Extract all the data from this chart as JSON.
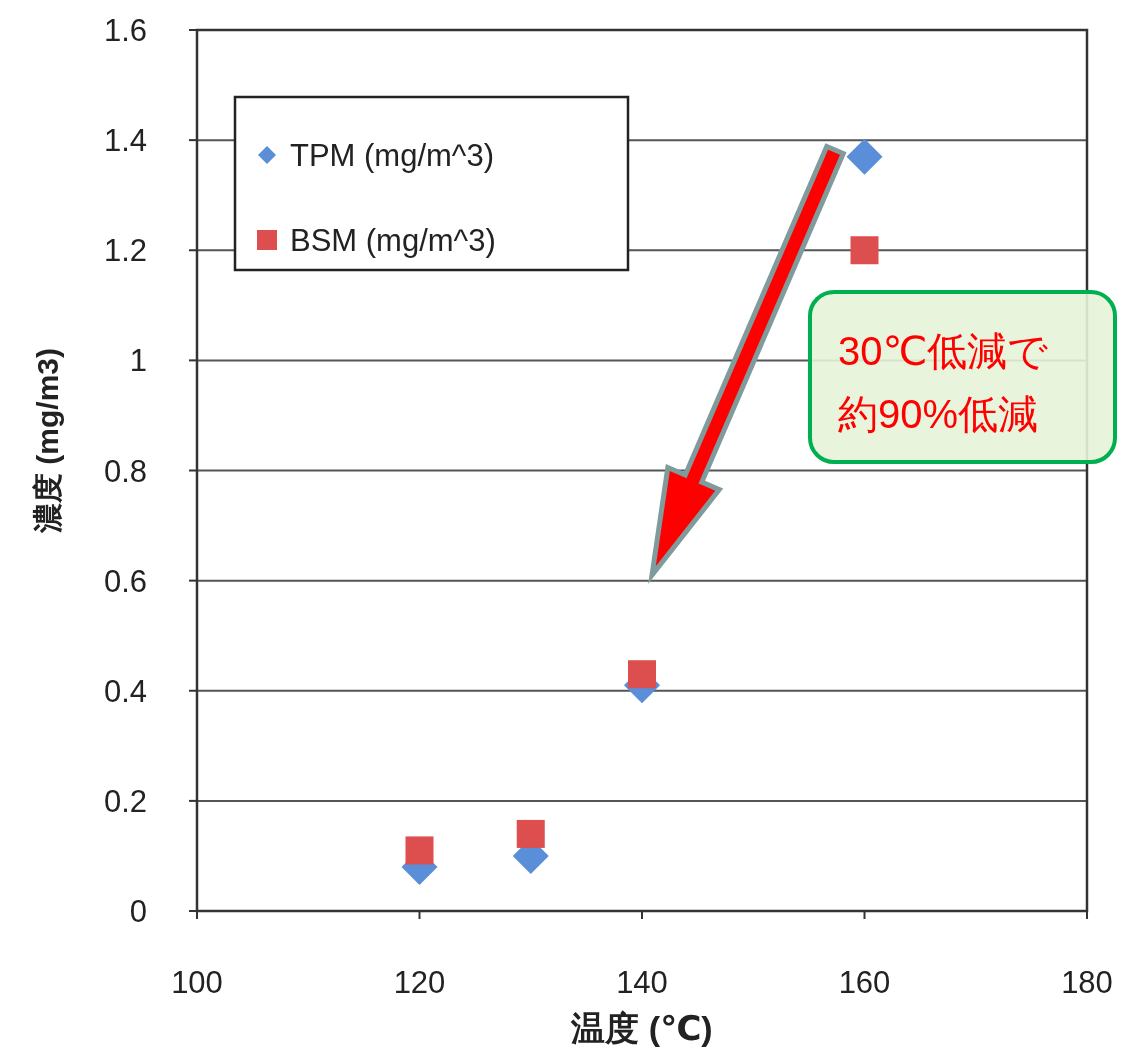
{
  "chart_data": {
    "type": "scatter",
    "xlabel": "温度 (℃)",
    "ylabel": "濃度 (mg/m3)",
    "x": [
      120,
      130,
      140,
      160
    ],
    "series": [
      {
        "name": "TPM (mg/m^3)",
        "color": "#5a8ed8",
        "marker": "diamond",
        "values": [
          0.08,
          0.1,
          0.41,
          1.37
        ]
      },
      {
        "name": "BSM (mg/m^3)",
        "color": "#dd4e4e",
        "marker": "square",
        "values": [
          0.11,
          0.14,
          0.43,
          1.2
        ]
      }
    ],
    "xlim": [
      100,
      180
    ],
    "xticks": [
      100,
      120,
      140,
      160,
      180
    ],
    "ylim": [
      0,
      1.6
    ],
    "yticks": [
      0,
      0.2,
      0.4,
      0.6,
      0.8,
      1,
      1.2,
      1.4,
      1.6
    ],
    "grid": "y",
    "legend": "top left",
    "annotations": [
      "30℃低減で",
      "約90%低減"
    ]
  }
}
